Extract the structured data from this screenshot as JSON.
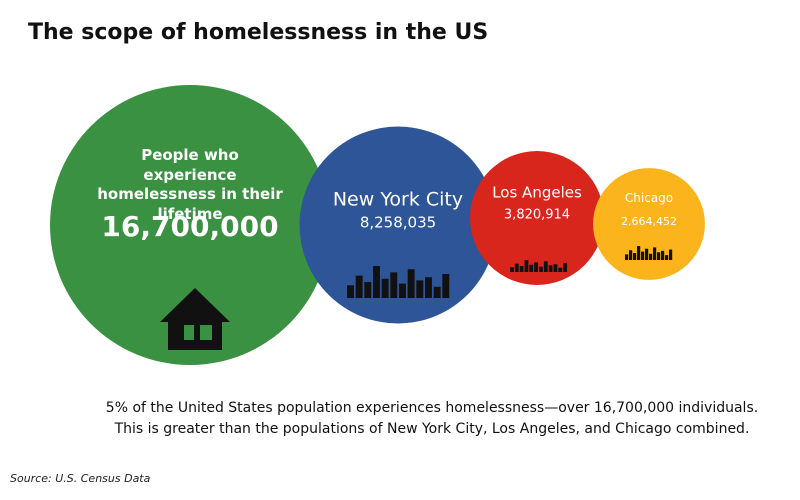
{
  "chart_data": {
    "type": "bubble",
    "title": "The scope of homelessness in the US",
    "categories": [
      "People who experience homelessness in their lifetime",
      "New York City",
      "Los Angeles",
      "Chicago"
    ],
    "values": [
      16700000,
      8258035,
      3820914,
      2664452
    ],
    "value_labels": [
      "16,700,000",
      "8,258,035",
      "3,820,914",
      "2,664,452"
    ],
    "colors": [
      "#3a9142",
      "#2d5597",
      "#d9261c",
      "#fbb41b"
    ],
    "notes": [
      "5% of the United States population experiences homelessness—over 16,700,000 individuals.",
      "This is greater than the populations of New York City, Los Angeles, and Chicago combined."
    ],
    "source": "Source: U.S. Census Data"
  }
}
